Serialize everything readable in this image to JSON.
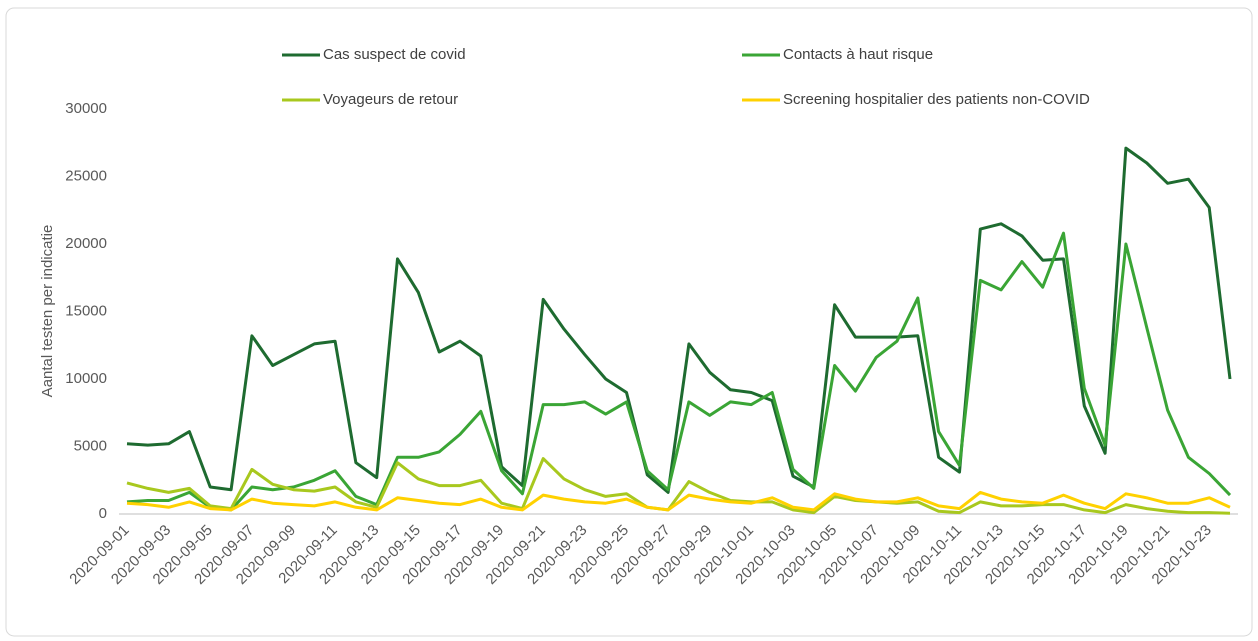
{
  "chart_data": {
    "type": "line",
    "y_label": "Aantal testen per indicatie",
    "categories": [
      "2020-09-01",
      null,
      "2020-09-03",
      null,
      "2020-09-05",
      null,
      "2020-09-07",
      null,
      "2020-09-09",
      null,
      "2020-09-11",
      null,
      "2020-09-13",
      null,
      "2020-09-15",
      null,
      "2020-09-17",
      null,
      "2020-09-19",
      null,
      "2020-09-21",
      null,
      "2020-09-23",
      null,
      "2020-09-25",
      null,
      "2020-09-27",
      null,
      "2020-09-29",
      null,
      "2020-10-01",
      null,
      "2020-10-03",
      null,
      "2020-10-05",
      null,
      "2020-10-07",
      null,
      "2020-10-09",
      null,
      "2020-10-11",
      null,
      "2020-10-13",
      null,
      "2020-10-15",
      null,
      "2020-10-17",
      null,
      "2020-10-19",
      null,
      "2020-10-21",
      null,
      "2020-10-23",
      null
    ],
    "series": [
      {
        "name": "Cas suspect de covid",
        "color": "#1e6b30",
        "values": [
          5200,
          5100,
          5200,
          6100,
          2000,
          1800,
          13200,
          11000,
          11800,
          12600,
          12800,
          3800,
          2700,
          18900,
          16400,
          12000,
          12800,
          11700,
          3500,
          2100,
          15900,
          13700,
          11800,
          10000,
          9000,
          2900,
          1600,
          12600,
          10500,
          9200,
          9000,
          8400,
          2800,
          2000,
          15500,
          13100,
          13100,
          13100,
          13200,
          4200,
          3100,
          21100,
          21500,
          20600,
          18800,
          18900,
          8000,
          4500,
          27100,
          26000,
          24500,
          24800,
          22700,
          10000
        ]
      },
      {
        "name": "Contacts à haut risque",
        "color": "#3aa535",
        "values": [
          900,
          1000,
          1000,
          1600,
          500,
          300,
          2000,
          1800,
          2000,
          2500,
          3200,
          1300,
          700,
          4200,
          4200,
          4600,
          5900,
          7600,
          3200,
          1500,
          8100,
          8100,
          8300,
          7400,
          8300,
          3200,
          1800,
          8300,
          7300,
          8300,
          8100,
          9000,
          3300,
          1900,
          11000,
          9100,
          11600,
          12800,
          16000,
          6100,
          3600,
          17300,
          16600,
          18700,
          16800,
          20800,
          9300,
          5100,
          20000,
          13800,
          7700,
          4200,
          3000,
          1400
        ]
      },
      {
        "name": "Voyageurs de retour",
        "color": "#a8c81e",
        "values": [
          2300,
          1900,
          1600,
          1900,
          600,
          400,
          3300,
          2200,
          1800,
          1700,
          2000,
          900,
          500,
          3800,
          2600,
          2100,
          2100,
          2500,
          800,
          400,
          4100,
          2600,
          1800,
          1300,
          1500,
          500,
          300,
          2400,
          1600,
          1000,
          900,
          900,
          300,
          100,
          1300,
          1000,
          900,
          800,
          900,
          200,
          100,
          900,
          600,
          600,
          700,
          700,
          300,
          100,
          700,
          400,
          200,
          100,
          100,
          50
        ]
      },
      {
        "name": "Screening hospitalier des patients non-COVID",
        "color": "#ffd100",
        "values": [
          800,
          700,
          500,
          900,
          400,
          300,
          1100,
          800,
          700,
          600,
          900,
          500,
          300,
          1200,
          1000,
          800,
          700,
          1100,
          500,
          300,
          1400,
          1100,
          900,
          800,
          1100,
          500,
          300,
          1400,
          1100,
          900,
          800,
          1200,
          500,
          300,
          1500,
          1100,
          900,
          900,
          1200,
          600,
          400,
          1600,
          1100,
          900,
          800,
          1400,
          800,
          400,
          1500,
          1200,
          800,
          800,
          1200,
          500
        ]
      }
    ],
    "ylim": [
      0,
      30000
    ],
    "yticks": [
      0,
      5000,
      10000,
      15000,
      20000,
      25000,
      30000
    ],
    "grid": false,
    "legend": "top"
  }
}
